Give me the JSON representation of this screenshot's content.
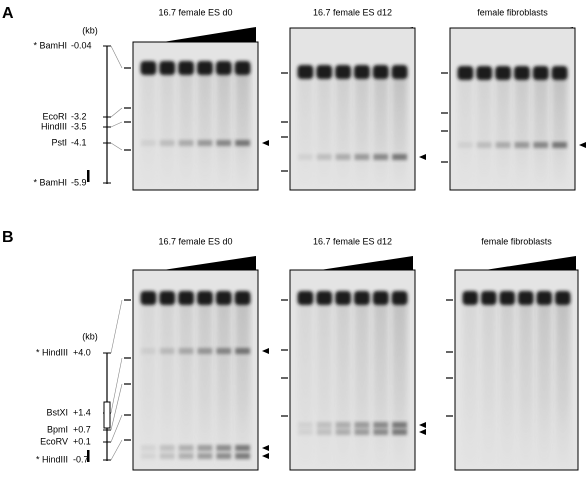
{
  "panels": [
    {
      "label": "A",
      "map": {
        "unit": "(kb)",
        "sites": [
          {
            "enzyme": "* BamHI",
            "position": "-0.04"
          },
          {
            "enzyme": "EcoRI",
            "position": "-3.2"
          },
          {
            "enzyme": "HindIII",
            "position": "-3.5"
          },
          {
            "enzyme": "PstI",
            "position": "-4.1"
          },
          {
            "enzyme": "* BamHI",
            "position": "-5.9"
          }
        ]
      },
      "blots": [
        {
          "title": "16.7 female ES d0"
        },
        {
          "title": "16.7 female ES d12"
        },
        {
          "title": "female fibroblasts"
        }
      ]
    },
    {
      "label": "B",
      "map": {
        "unit": "(kb)",
        "sites": [
          {
            "enzyme": "* HindIII",
            "position": "+4.0"
          },
          {
            "enzyme": "BstXI",
            "position": "+1.4"
          },
          {
            "enzyme": "BpmI",
            "position": "+0.7"
          },
          {
            "enzyme": "EcoRV",
            "position": "+0.1"
          },
          {
            "enzyme": "* HindIII",
            "position": "-0.7"
          }
        ]
      },
      "blots": [
        {
          "title": "16.7 female ES d0"
        },
        {
          "title": "16.7 female ES d12"
        },
        {
          "title": "female fibroblasts"
        }
      ]
    }
  ]
}
